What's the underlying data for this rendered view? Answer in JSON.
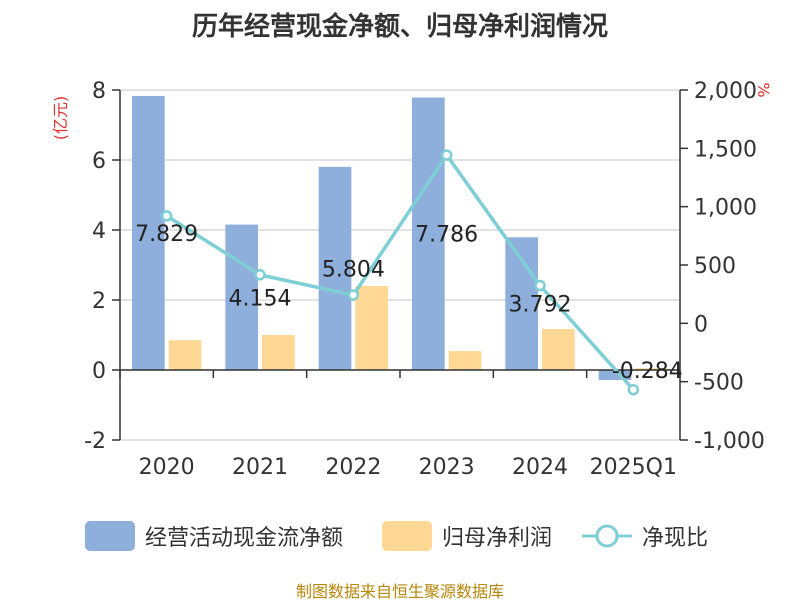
{
  "chart_data": {
    "type": "bar",
    "title": "历年经营现金净额、归母净利润情况",
    "categories": [
      "2020",
      "2021",
      "2022",
      "2023",
      "2024",
      "2025Q1"
    ],
    "y_left": {
      "label": "(亿元)",
      "lim": [
        -2,
        8
      ],
      "ticks": [
        "8",
        "6",
        "4",
        "2",
        "0",
        "-2"
      ],
      "tick_values": [
        8,
        6,
        4,
        2,
        0,
        -2
      ]
    },
    "y_right": {
      "label": "%",
      "lim": [
        -1000,
        2000
      ],
      "ticks": [
        "2,000",
        "1,500",
        "1,000",
        "500",
        "0",
        "-500",
        "-1,000"
      ],
      "tick_values": [
        2000,
        1500,
        1000,
        500,
        0,
        -500,
        -1000
      ]
    },
    "series": [
      {
        "name": "经营活动现金流净额",
        "type": "bar",
        "axis": "left",
        "color": "#8eaedc",
        "values": [
          7.829,
          4.154,
          5.804,
          7.786,
          3.792,
          -0.284
        ],
        "data_labels": [
          "7.829",
          "4.154",
          "5.804",
          "7.786",
          "3.792",
          "-0.284"
        ]
      },
      {
        "name": "归母净利润",
        "type": "bar",
        "axis": "left",
        "color": "#fed894",
        "values": [
          0.85,
          1.0,
          2.4,
          0.54,
          1.17,
          0.05
        ]
      },
      {
        "name": "净现比",
        "type": "line",
        "axis": "right",
        "color": "#7ecfd5",
        "values": [
          921,
          416,
          242,
          1442,
          324,
          -569
        ]
      }
    ],
    "grid": true,
    "legend_position": "bottom"
  },
  "source": "制图数据来自恒生聚源数据库"
}
